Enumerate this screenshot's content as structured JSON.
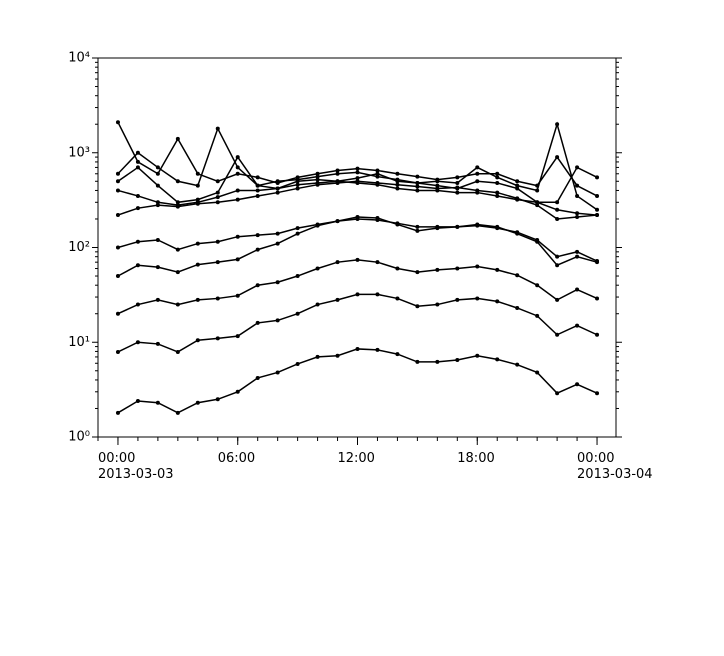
{
  "chart_data": {
    "type": "line",
    "log_y": true,
    "markers": true,
    "x": [
      "2013-03-03 00:00",
      "2013-03-03 01:00",
      "2013-03-03 02:00",
      "2013-03-03 03:00",
      "2013-03-03 04:00",
      "2013-03-03 05:00",
      "2013-03-03 06:00",
      "2013-03-03 07:00",
      "2013-03-03 08:00",
      "2013-03-03 09:00",
      "2013-03-03 10:00",
      "2013-03-03 11:00",
      "2013-03-03 12:00",
      "2013-03-03 13:00",
      "2013-03-03 14:00",
      "2013-03-03 15:00",
      "2013-03-03 16:00",
      "2013-03-03 17:00",
      "2013-03-03 18:00",
      "2013-03-03 19:00",
      "2013-03-03 20:00",
      "2013-03-03 21:00",
      "2013-03-03 22:00",
      "2013-03-03 23:00",
      "2013-03-04 00:00"
    ],
    "xlim": [
      "2013-03-02 23:00",
      "2013-03-04 00:57"
    ],
    "xticks": [
      {
        "value": "2013-03-03 00:00",
        "label": "00:00\n2013-03-03"
      },
      {
        "value": "2013-03-03 06:00",
        "label": "06:00"
      },
      {
        "value": "2013-03-03 12:00",
        "label": "12:00"
      },
      {
        "value": "2013-03-03 18:00",
        "label": "18:00"
      },
      {
        "value": "2013-03-04 00:00",
        "label": "00:00\n2013-03-04"
      }
    ],
    "ylim": [
      1,
      10000
    ],
    "yticks": [
      {
        "value": 1,
        "label": "10⁰"
      },
      {
        "value": 10,
        "label": "10¹"
      },
      {
        "value": 100,
        "label": "10²"
      },
      {
        "value": 1000,
        "label": "10³"
      },
      {
        "value": 10000,
        "label": "10⁴"
      }
    ],
    "series": [
      {
        "color": "#000000",
        "values": [
          1.8,
          2.4,
          2.3,
          1.8,
          2.3,
          2.5,
          3.0,
          4.2,
          4.8,
          5.9,
          7.0,
          7.2,
          8.5,
          8.3,
          7.5,
          6.2,
          6.2,
          6.5,
          7.2,
          6.6,
          5.8,
          4.8,
          2.9,
          3.6,
          2.9
        ]
      },
      {
        "color": "#000000",
        "values": [
          7.9,
          10,
          9.6,
          7.9,
          10.5,
          11,
          11.6,
          16,
          17,
          20,
          25,
          28,
          32,
          32,
          29,
          24,
          25,
          28,
          29,
          27,
          23,
          19,
          12,
          15,
          12
        ]
      },
      {
        "color": "#000000",
        "values": [
          20,
          25,
          28,
          25,
          28,
          29,
          31,
          40,
          43,
          50,
          60,
          70,
          74,
          70,
          60,
          55,
          58,
          60,
          63,
          58,
          51,
          40,
          28,
          36,
          29
        ]
      },
      {
        "color": "#000000",
        "values": [
          50,
          65,
          62,
          55,
          66,
          70,
          75,
          95,
          110,
          140,
          170,
          190,
          210,
          205,
          175,
          150,
          160,
          165,
          175,
          165,
          140,
          115,
          65,
          80,
          70
        ]
      },
      {
        "color": "#000000",
        "values": [
          100,
          115,
          120,
          95,
          110,
          115,
          130,
          135,
          140,
          160,
          175,
          190,
          200,
          195,
          180,
          165,
          165,
          165,
          170,
          160,
          145,
          120,
          80,
          90,
          72
        ]
      },
      {
        "color": "#000000",
        "values": [
          220,
          260,
          280,
          270,
          290,
          300,
          320,
          350,
          380,
          420,
          460,
          480,
          500,
          480,
          460,
          440,
          420,
          430,
          400,
          380,
          330,
          280,
          200,
          210,
          220
        ]
      },
      {
        "color": "#000000",
        "values": [
          500,
          700,
          450,
          300,
          320,
          380,
          900,
          450,
          420,
          500,
          520,
          500,
          540,
          600,
          500,
          480,
          500,
          480,
          700,
          550,
          450,
          400,
          2000,
          350,
          250
        ]
      },
      {
        "color": "#000000",
        "values": [
          2100,
          800,
          600,
          1400,
          600,
          500,
          600,
          550,
          480,
          550,
          600,
          650,
          680,
          650,
          600,
          560,
          520,
          550,
          600,
          600,
          500,
          450,
          900,
          450,
          350
        ]
      },
      {
        "color": "#000000",
        "values": [
          600,
          1000,
          700,
          500,
          450,
          1800,
          700,
          450,
          500,
          520,
          560,
          600,
          620,
          560,
          520,
          480,
          450,
          420,
          500,
          480,
          420,
          300,
          300,
          700,
          550
        ]
      },
      {
        "color": "#000000",
        "values": [
          400,
          350,
          300,
          280,
          300,
          340,
          400,
          400,
          420,
          460,
          480,
          500,
          480,
          460,
          420,
          400,
          400,
          380,
          380,
          350,
          320,
          300,
          250,
          230,
          220
        ]
      }
    ]
  }
}
